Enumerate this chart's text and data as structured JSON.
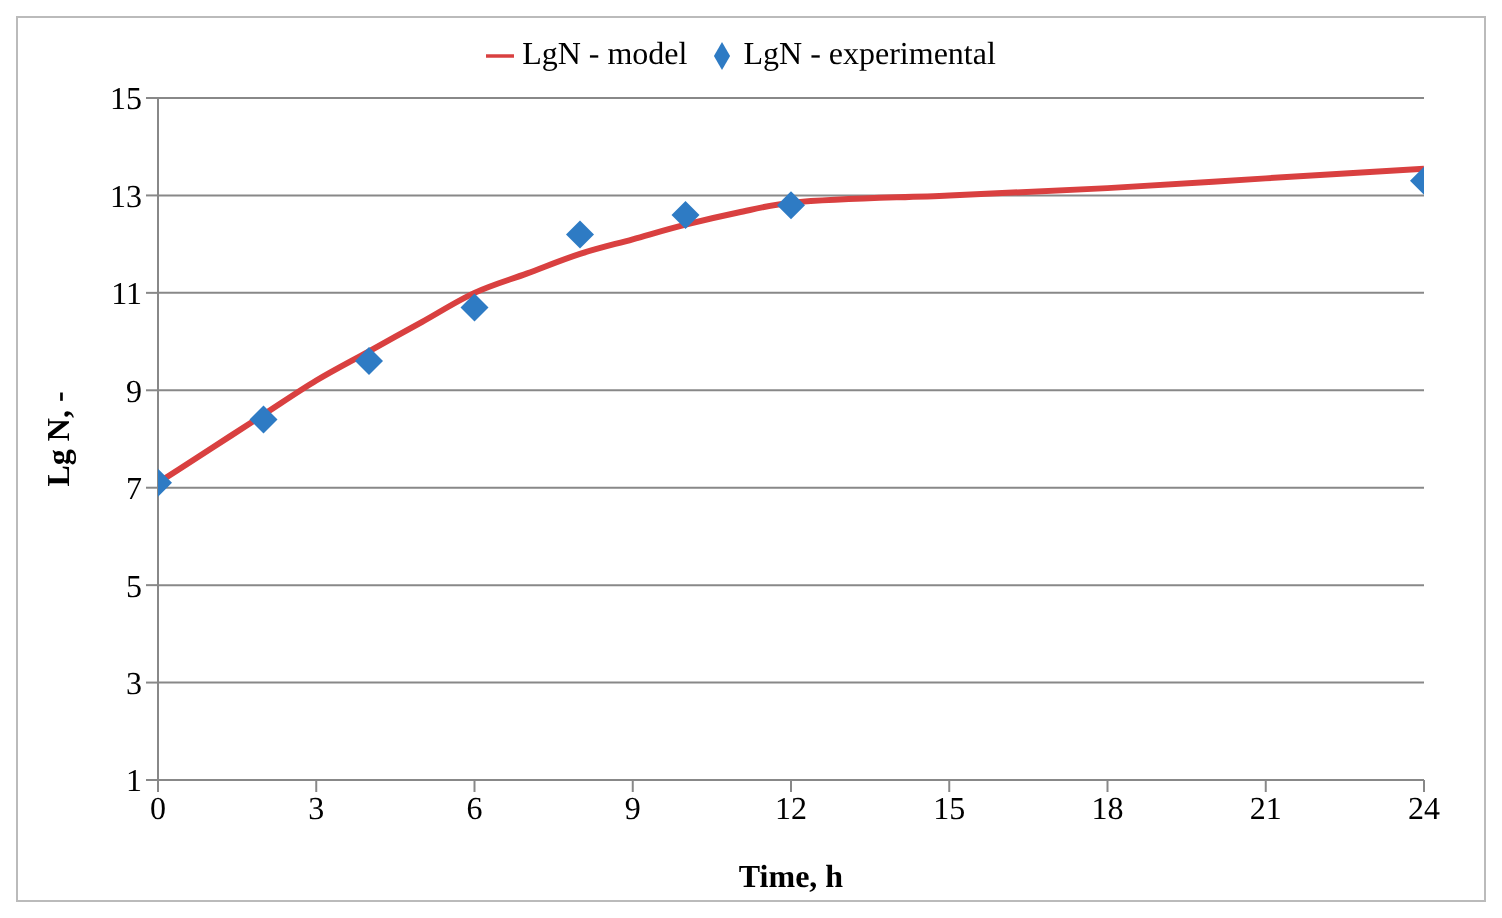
{
  "chart_data": {
    "type": "line",
    "xlabel": "Time, h",
    "ylabel": "Lg N, -",
    "xlim": [
      0,
      24
    ],
    "xticks": [
      0,
      3,
      6,
      9,
      12,
      15,
      18,
      21,
      24
    ],
    "ylim": [
      1,
      15
    ],
    "yticks": [
      1,
      3,
      5,
      7,
      9,
      11,
      13,
      15
    ],
    "grid": "y",
    "legend": "top",
    "series": [
      {
        "name": "LgN - model",
        "type": "line",
        "color": "#d94040",
        "marker": "none",
        "line_style": "solid",
        "x": [
          0,
          1,
          2,
          3,
          4,
          5,
          6,
          7,
          8,
          9,
          10,
          11,
          12,
          15,
          18,
          21,
          24
        ],
        "values": [
          7.1,
          7.8,
          8.5,
          9.2,
          9.8,
          10.4,
          11.0,
          11.4,
          11.8,
          12.1,
          12.4,
          12.65,
          12.85,
          13.0,
          13.15,
          13.35,
          13.55
        ]
      },
      {
        "name": "LgN - experimental",
        "type": "scatter",
        "color": "#2e7bc4",
        "marker": "diamond",
        "x": [
          0,
          2,
          4,
          6,
          8,
          10,
          12,
          24
        ],
        "values": [
          7.1,
          8.4,
          9.6,
          10.7,
          12.2,
          12.6,
          12.8,
          13.3
        ]
      }
    ]
  }
}
